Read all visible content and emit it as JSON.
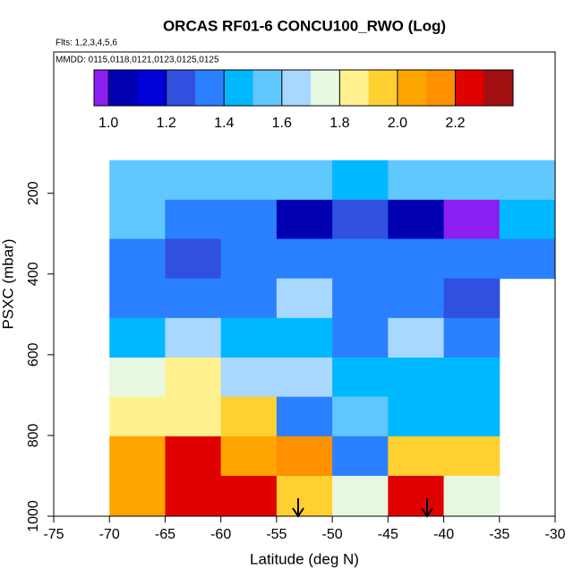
{
  "chart_data": {
    "type": "heatmap",
    "title": "ORCAS RF01-6 CONCU100_RWO (Log)",
    "subtitle": "Flts: 1,2,3,4,5,6",
    "annotation": "MMDD: 0115,0118,0121,0123,0125,0125",
    "x_label": "Latitude (deg N)",
    "y_label": "PSXC (mbar)",
    "xlim": [
      -75,
      -30
    ],
    "ylim": [
      1000,
      -150
    ],
    "xticks": [
      -75,
      -70,
      -65,
      -60,
      -55,
      -50,
      -45,
      -40,
      -35,
      -30
    ],
    "yticks": [
      200,
      400,
      600,
      800,
      1000
    ],
    "x_edges": [
      -70,
      -65,
      -60,
      -55,
      -50,
      -45,
      -40,
      -35,
      -30
    ],
    "y_edges": [
      118,
      216,
      313,
      411,
      509,
      607,
      704,
      802,
      900,
      1000
    ],
    "z": [
      [
        1.55,
        1.55,
        1.55,
        1.55,
        1.45,
        1.55,
        1.55,
        1.55
      ],
      [
        1.5,
        1.35,
        1.35,
        1.05,
        1.25,
        1.05,
        0.97,
        1.45
      ],
      [
        1.35,
        1.25,
        1.3,
        1.35,
        1.3,
        1.35,
        1.35,
        1.3
      ],
      [
        1.35,
        1.35,
        1.35,
        1.65,
        1.35,
        1.35,
        1.25,
        null
      ],
      [
        1.45,
        1.65,
        1.45,
        1.45,
        1.35,
        1.65,
        1.35,
        null
      ],
      [
        1.75,
        1.85,
        1.65,
        1.6,
        1.45,
        1.45,
        1.45,
        null
      ],
      [
        1.85,
        1.85,
        1.95,
        1.35,
        1.55,
        1.45,
        1.45,
        null
      ],
      [
        2.05,
        2.25,
        2.05,
        2.15,
        1.35,
        1.95,
        1.95,
        null
      ],
      [
        2.05,
        2.25,
        2.25,
        1.95,
        1.75,
        2.25,
        1.7,
        null
      ]
    ],
    "colorbar": {
      "levels": [
        0.95,
        1.0,
        1.1,
        1.2,
        1.3,
        1.4,
        1.5,
        1.6,
        1.7,
        1.8,
        1.9,
        2.0,
        2.1,
        2.2,
        2.3,
        2.4
      ],
      "colors": [
        "#8b1ef0",
        "#0000b0",
        "#0000d8",
        "#3050e0",
        "#2a80ff",
        "#00b8ff",
        "#60c8ff",
        "#a8d8ff",
        "#e8f8e0",
        "#fff090",
        "#ffd030",
        "#ffa500",
        "#ff9000",
        "#e00000",
        "#a01010"
      ],
      "ticks": [
        {
          "value": 1,
          "label": "1.0"
        },
        {
          "value": 1.2,
          "label": "1.2"
        },
        {
          "value": 1.4,
          "label": "1.4"
        },
        {
          "value": 1.6,
          "label": "1.6"
        },
        {
          "value": 1.8,
          "label": "1.8"
        },
        {
          "value": 2,
          "label": "2.0"
        },
        {
          "value": 2.2,
          "label": "2.2"
        }
      ]
    }
  }
}
